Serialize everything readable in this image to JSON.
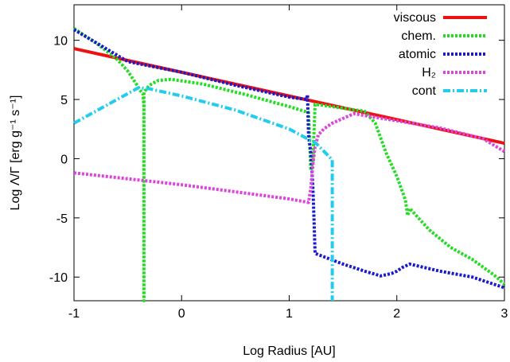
{
  "chart_data": {
    "type": "line",
    "xlabel": "Log Radius [AU]",
    "ylabel": "Log Λ/Γ [erg g⁻¹ s⁻¹]",
    "xlim": [
      -1,
      3
    ],
    "ylim": [
      -12,
      13
    ],
    "xticks": [
      -1,
      0,
      1,
      2,
      3
    ],
    "xtick_labels": [
      "-1",
      "0",
      "1",
      "2",
      "3"
    ],
    "yticks": [
      -10,
      -5,
      0,
      5,
      10
    ],
    "ytick_labels": [
      "-10",
      "-5",
      "0",
      "5",
      "10"
    ],
    "grid": false,
    "legend_position": "top-right",
    "series": [
      {
        "name": "viscous",
        "color": "#ee1111",
        "style": "solid",
        "points": [
          [
            -1,
            9.3
          ],
          [
            3,
            1.3
          ]
        ]
      },
      {
        "name": "chem.",
        "color": "#22dd22",
        "style": "dotted",
        "points": [
          [
            -1,
            11.0
          ],
          [
            -0.8,
            9.8
          ],
          [
            -0.6,
            8.4
          ],
          [
            -0.5,
            7.4
          ],
          [
            -0.42,
            6.3
          ],
          [
            -0.38,
            5.7
          ],
          [
            -0.36,
            5.5
          ],
          [
            -0.35,
            4.5
          ],
          [
            -0.35,
            -12.0
          ],
          [
            -0.35,
            5.6
          ],
          [
            -0.3,
            6.2
          ],
          [
            -0.22,
            6.6
          ],
          [
            -0.1,
            6.7
          ],
          [
            0.2,
            6.3
          ],
          [
            0.6,
            5.4
          ],
          [
            1.0,
            4.4
          ],
          [
            1.18,
            3.9
          ],
          [
            1.2,
            -1.0
          ],
          [
            1.22,
            -0.2
          ],
          [
            1.24,
            4.6
          ],
          [
            1.4,
            4.4
          ],
          [
            1.7,
            4.0
          ],
          [
            1.8,
            3.0
          ],
          [
            1.9,
            0.5
          ],
          [
            2.0,
            -1.5
          ],
          [
            2.08,
            -3.5
          ],
          [
            2.1,
            -4.8
          ],
          [
            2.12,
            -4.2
          ],
          [
            2.3,
            -6.0
          ],
          [
            2.5,
            -7.5
          ],
          [
            2.7,
            -8.5
          ],
          [
            2.9,
            -9.8
          ],
          [
            3.0,
            -10.6
          ]
        ]
      },
      {
        "name": "atomic",
        "color": "#1a1acc",
        "style": "dotted",
        "points": [
          [
            -1,
            10.9
          ],
          [
            -0.5,
            8.2
          ],
          [
            0.0,
            7.3
          ],
          [
            0.5,
            6.2
          ],
          [
            1.0,
            5.2
          ],
          [
            1.16,
            5.0
          ],
          [
            1.17,
            5.4
          ],
          [
            1.18,
            2.0
          ],
          [
            1.2,
            0.5
          ],
          [
            1.21,
            -0.8
          ],
          [
            1.22,
            -2.5
          ],
          [
            1.23,
            -5.0
          ],
          [
            1.24,
            -8.0
          ],
          [
            1.5,
            -8.9
          ],
          [
            1.7,
            -9.5
          ],
          [
            1.85,
            -9.9
          ],
          [
            1.95,
            -9.7
          ],
          [
            2.0,
            -9.5
          ],
          [
            2.05,
            -9.2
          ],
          [
            2.12,
            -8.9
          ],
          [
            2.4,
            -9.5
          ],
          [
            2.7,
            -10.0
          ],
          [
            3.0,
            -10.9
          ]
        ]
      },
      {
        "name": "H₂",
        "color": "#dd44dd",
        "style": "dotted",
        "points": [
          [
            -1,
            -1.2
          ],
          [
            -0.5,
            -1.7
          ],
          [
            0.0,
            -2.2
          ],
          [
            0.5,
            -2.8
          ],
          [
            1.0,
            -3.4
          ],
          [
            1.18,
            -3.7
          ],
          [
            1.2,
            -2.5
          ],
          [
            1.22,
            -0.5
          ],
          [
            1.24,
            1.0
          ],
          [
            1.27,
            2.0
          ],
          [
            1.32,
            2.5
          ],
          [
            1.4,
            3.0
          ],
          [
            1.6,
            3.8
          ],
          [
            1.8,
            3.5
          ],
          [
            2.0,
            3.2
          ],
          [
            2.4,
            2.6
          ],
          [
            2.8,
            1.7
          ],
          [
            3.0,
            0.6
          ]
        ]
      },
      {
        "name": "cont",
        "color": "#22ccee",
        "style": "dashdot",
        "points": [
          [
            -1,
            3.0
          ],
          [
            -0.7,
            4.5
          ],
          [
            -0.4,
            6.0
          ],
          [
            -0.3,
            5.9
          ],
          [
            0.0,
            5.3
          ],
          [
            0.5,
            4.1
          ],
          [
            1.0,
            2.5
          ],
          [
            1.25,
            1.3
          ],
          [
            1.4,
            -0.1
          ],
          [
            1.4,
            -12.0
          ]
        ]
      }
    ]
  }
}
